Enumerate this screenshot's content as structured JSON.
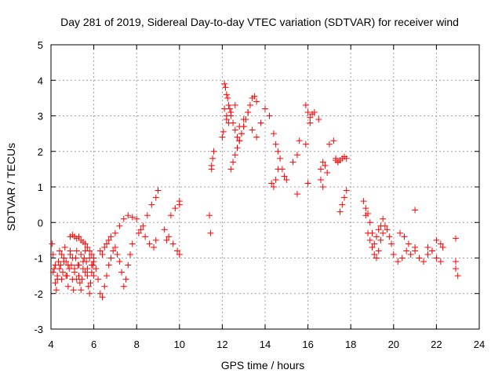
{
  "chart_data": {
    "type": "scatter",
    "title": "Day 281 of 2019, Sidereal Day-to-day VTEC variation (SDTVAR) for receiver wind",
    "xlabel": "GPS time / hours",
    "ylabel": "SDTVAR / TECUs",
    "xlim": [
      4,
      24
    ],
    "ylim": [
      -3,
      5
    ],
    "xticks": [
      "4",
      "6",
      "8",
      "10",
      "12",
      "14",
      "16",
      "18",
      "20",
      "22",
      "24"
    ],
    "yticks": [
      "-3",
      "-2",
      "-1",
      "0",
      "1",
      "2",
      "3",
      "4",
      "5"
    ],
    "grid": true,
    "marker": "+",
    "color": "#ff0000",
    "series": [
      {
        "name": "SDTVAR",
        "x": [
          4.05,
          4.1,
          4.15,
          4.2,
          4.25,
          4.3,
          4.35,
          4.4,
          4.45,
          4.5,
          4.55,
          4.6,
          4.65,
          4.7,
          4.75,
          4.8,
          4.85,
          4.9,
          4.95,
          5.0,
          5.05,
          5.1,
          5.15,
          5.2,
          5.25,
          5.3,
          5.35,
          5.4,
          5.45,
          5.5,
          5.55,
          5.6,
          5.65,
          5.7,
          5.75,
          5.8,
          5.85,
          5.9,
          5.95,
          6.0,
          4.1,
          4.2,
          4.3,
          4.4,
          4.5,
          4.6,
          4.7,
          4.8,
          4.9,
          5.0,
          5.1,
          5.2,
          5.3,
          5.4,
          5.5,
          5.6,
          5.7,
          5.8,
          5.9,
          6.0,
          4.9,
          5.0,
          5.1,
          5.2,
          5.3,
          5.4,
          5.5,
          5.6,
          5.7,
          5.8,
          5.9,
          6.0,
          6.1,
          6.2,
          6.3,
          6.4,
          6.5,
          6.6,
          6.7,
          6.8,
          6.9,
          7.0,
          7.1,
          7.2,
          7.3,
          7.4,
          7.5,
          7.6,
          7.7,
          7.8,
          6.3,
          6.4,
          6.5,
          6.6,
          6.7,
          6.8,
          7.0,
          7.2,
          7.4,
          7.6,
          7.8,
          8.0,
          8.2,
          8.4,
          8.6,
          8.8,
          8.9,
          8.1,
          8.3,
          8.5,
          8.7,
          8.9,
          9.0,
          9.3,
          9.5,
          9.7,
          9.9,
          10.0,
          9.4,
          9.6,
          9.8,
          10.0,
          10.0,
          11.4,
          11.45,
          11.5,
          11.5,
          11.55,
          11.6,
          12.0,
          12.05,
          12.1,
          12.15,
          12.2,
          12.25,
          12.3,
          12.35,
          12.4,
          12.5,
          12.6,
          12.7,
          12.8,
          12.9,
          13.0,
          13.1,
          13.2,
          13.3,
          13.4,
          13.5,
          13.6,
          12.1,
          12.2,
          12.3,
          12.4,
          12.5,
          12.6,
          12.7,
          12.8,
          12.9,
          13.0,
          12.2,
          12.4,
          12.6,
          12.8,
          13.0,
          13.2,
          13.4,
          13.6,
          13.8,
          14.0,
          14.2,
          14.4,
          14.5,
          14.6,
          14.7,
          14.8,
          14.9,
          15.0,
          14.3,
          14.4,
          14.5,
          14.6,
          15.3,
          15.5,
          15.6,
          15.9,
          16.0,
          16.1,
          15.9,
          16.0,
          16.1,
          16.2,
          16.3,
          16.5,
          16.6,
          16.7,
          16.8,
          16.9,
          16.6,
          16.7,
          17.0,
          17.2,
          17.3,
          17.4,
          17.5,
          17.6,
          17.7,
          17.8,
          17.3,
          17.4,
          17.5,
          17.6,
          17.7,
          17.8,
          15.5,
          18.6,
          18.7,
          18.8,
          18.9,
          19.0,
          19.1,
          19.2,
          19.3,
          19.4,
          19.5,
          18.7,
          18.8,
          18.9,
          19.0,
          19.1,
          19.2,
          19.3,
          19.4,
          19.5,
          19.6,
          19.7,
          19.8,
          19.9,
          20.0,
          20.2,
          20.4,
          20.6,
          20.8,
          21.0,
          20.3,
          20.5,
          20.7,
          21.0,
          21.2,
          21.4,
          21.6,
          21.8,
          22.0,
          22.2,
          21.6,
          21.8,
          22.0,
          22.2,
          22.3,
          21.0,
          22.9,
          22.9,
          22.9,
          23.0
        ],
        "y": [
          -0.6,
          -0.9,
          -1.3,
          -1.7,
          -1.9,
          -1.5,
          -1.1,
          -0.8,
          -1.2,
          -1.6,
          -1.4,
          -1.0,
          -0.7,
          -1.1,
          -1.5,
          -1.8,
          -1.3,
          -0.9,
          -1.2,
          -1.6,
          -1.9,
          -1.4,
          -1.0,
          -0.8,
          -1.2,
          -1.5,
          -1.7,
          -1.9,
          -1.6,
          -1.3,
          -1.0,
          -0.8,
          -1.1,
          -1.5,
          -1.8,
          -2.0,
          -1.7,
          -1.4,
          -1.2,
          -1.0,
          -1.4,
          -1.2,
          -1.6,
          -1.3,
          -0.9,
          -1.1,
          -1.5,
          -1.2,
          -0.8,
          -1.0,
          -1.3,
          -1.6,
          -1.2,
          -0.9,
          -1.1,
          -1.4,
          -1.3,
          -1.0,
          -1.2,
          -1.5,
          -0.4,
          -0.35,
          -0.4,
          -0.45,
          -0.4,
          -0.5,
          -0.55,
          -0.6,
          -0.7,
          -0.8,
          -0.9,
          -1.1,
          -1.3,
          -1.6,
          -2.0,
          -2.1,
          -1.8,
          -1.5,
          -1.2,
          -1.0,
          -0.8,
          -0.7,
          -0.9,
          -1.1,
          -1.4,
          -1.8,
          -1.6,
          -1.2,
          -0.9,
          -0.6,
          -0.8,
          -0.9,
          -0.7,
          -0.6,
          -0.5,
          -0.4,
          -0.3,
          -0.1,
          0.1,
          0.2,
          0.15,
          0.1,
          -0.2,
          -0.4,
          -0.6,
          -0.7,
          -0.5,
          -0.3,
          -0.1,
          0.2,
          0.5,
          0.7,
          0.9,
          -0.2,
          -0.4,
          -0.6,
          -0.8,
          -0.9,
          -0.5,
          0.2,
          0.4,
          0.6,
          0.5,
          0.2,
          -0.3,
          1.5,
          1.6,
          1.8,
          2.0,
          2.4,
          2.55,
          3.9,
          3.8,
          3.6,
          3.5,
          3.3,
          3.2,
          3.0,
          2.8,
          2.6,
          2.4,
          2.3,
          2.5,
          2.7,
          2.9,
          3.1,
          3.3,
          3.5,
          3.55,
          3.4,
          3.2,
          3.0,
          2.8,
          1.5,
          1.7,
          1.9,
          2.1,
          2.3,
          2.5,
          2.7,
          2.9,
          3.1,
          3.3,
          2.7,
          2.9,
          3.1,
          2.6,
          2.4,
          2.8,
          3.2,
          3.0,
          2.5,
          2.2,
          2.0,
          1.8,
          1.5,
          1.3,
          1.2,
          1.1,
          1.0,
          1.2,
          1.5,
          1.7,
          1.9,
          2.3,
          3.3,
          3.1,
          2.8,
          2.2,
          1.1,
          2.95,
          3.05,
          3.1,
          2.9,
          1.5,
          1.7,
          1.6,
          1.4,
          1.2,
          1.0,
          2.2,
          2.3,
          1.8,
          1.7,
          1.75,
          1.8,
          1.85,
          1.8,
          1.75,
          1.7,
          0.3,
          0.5,
          0.7,
          0.9,
          0.8,
          0.6,
          0.4,
          0.25,
          0.0,
          -0.3,
          -0.6,
          -0.4,
          -0.2,
          -0.1,
          0.1,
          0.2,
          -0.3,
          -0.5,
          -0.7,
          -0.9,
          -1.0,
          -0.8,
          -0.5,
          -0.3,
          -0.1,
          -0.2,
          -0.4,
          -0.6,
          -0.9,
          -1.1,
          -1.0,
          -0.8,
          -0.9,
          -0.7,
          -0.3,
          -0.4,
          -0.6,
          -0.8,
          -1.0,
          -1.1,
          -0.9,
          -0.8,
          -0.5,
          -0.6,
          -0.7,
          -0.8,
          -1.0,
          -1.1,
          -0.7,
          0.35,
          -0.45,
          -1.1,
          -1.3,
          -1.5
        ]
      }
    ]
  }
}
